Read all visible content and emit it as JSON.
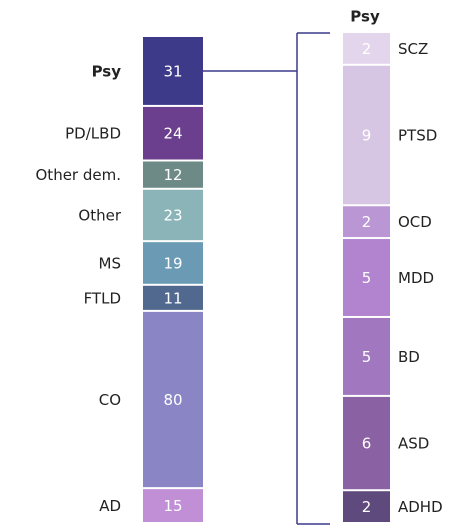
{
  "chart_data": [
    {
      "type": "stacked_bar",
      "categories": [
        "Psy",
        "PD/LBD",
        "Other dem.",
        "Other",
        "MS",
        "FTLD",
        "CO",
        "AD"
      ],
      "values": [
        31,
        24,
        12,
        23,
        19,
        11,
        80,
        15
      ],
      "colors": [
        "#3d3a8a",
        "#6b3f8e",
        "#6e8a86",
        "#8ab4b8",
        "#6a9ab4",
        "#52698f",
        "#8a86c6",
        "#c08fd6"
      ]
    },
    {
      "type": "stacked_bar",
      "title": "Psy",
      "categories": [
        "SCZ",
        "PTSD",
        "OCD",
        "MDD",
        "BD",
        "ASD",
        "ADHD"
      ],
      "values": [
        2,
        9,
        2,
        5,
        5,
        6,
        2
      ],
      "colors": [
        "#e3d6ec",
        "#d6c6e4",
        "#bb96d4",
        "#b284d0",
        "#a178c0",
        "#8a62a4",
        "#5e4a7c"
      ]
    }
  ]
}
